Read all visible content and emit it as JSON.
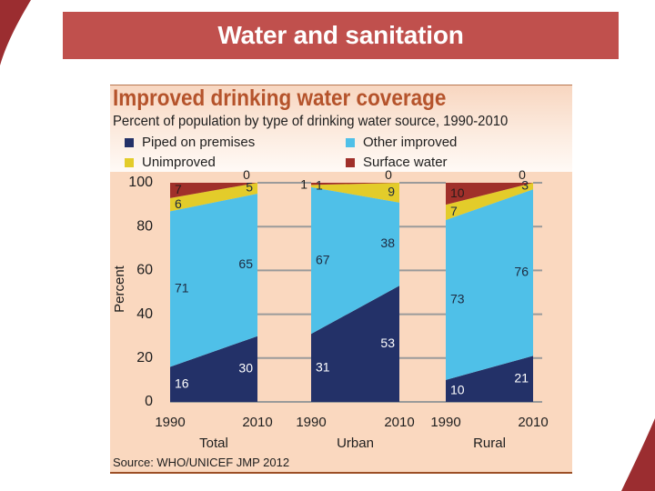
{
  "slide": {
    "title": "Water and sanitation"
  },
  "figure": {
    "title": "Improved drinking water coverage",
    "subtitle": "Percent of population by type of drinking water source, 1990-2010",
    "source": "Source:  WHO/UNICEF JMP 2012"
  },
  "theme": {
    "title_bar_color": "#c0504d",
    "swoosh_color": "#9b2d30",
    "figure_title_color": "#b5532b",
    "chart_background": "#fad8bf"
  },
  "chart_data": {
    "type": "area",
    "stacked": true,
    "title": "Improved drinking water coverage",
    "subtitle": "Percent of population by type of drinking water source, 1990-2010",
    "xlabel": "",
    "ylabel": "Percent",
    "ylim": [
      0,
      100
    ],
    "yticks": [
      0,
      20,
      40,
      60,
      80,
      100
    ],
    "grid": true,
    "legend_position": "top",
    "legend": [
      {
        "label": "Piped on premises",
        "color": "#233168"
      },
      {
        "label": "Other improved",
        "color": "#4fc0e8"
      },
      {
        "label": "Unimproved",
        "color": "#e3cc2a"
      },
      {
        "label": "Surface water",
        "color": "#a0302a"
      }
    ],
    "groups": [
      {
        "name": "Total",
        "x": [
          "1990",
          "2010"
        ],
        "series": [
          {
            "name": "Piped on premises",
            "values": [
              16,
              30
            ]
          },
          {
            "name": "Other improved",
            "values": [
              71,
              65
            ]
          },
          {
            "name": "Unimproved",
            "values": [
              6,
              5
            ]
          },
          {
            "name": "Surface water",
            "values": [
              7,
              0
            ]
          }
        ]
      },
      {
        "name": "Urban",
        "x": [
          "1990",
          "2010"
        ],
        "series": [
          {
            "name": "Piped on premises",
            "values": [
              31,
              53
            ]
          },
          {
            "name": "Other improved",
            "values": [
              67,
              38
            ]
          },
          {
            "name": "Unimproved",
            "values": [
              1,
              9
            ]
          },
          {
            "name": "Surface water",
            "values": [
              1,
              0
            ]
          }
        ]
      },
      {
        "name": "Rural",
        "x": [
          "1990",
          "2010"
        ],
        "series": [
          {
            "name": "Piped on premises",
            "values": [
              10,
              21
            ]
          },
          {
            "name": "Other improved",
            "values": [
              73,
              76
            ]
          },
          {
            "name": "Unimproved",
            "values": [
              7,
              3
            ]
          },
          {
            "name": "Surface water",
            "values": [
              10,
              0
            ]
          }
        ]
      }
    ],
    "source": "Source:  WHO/UNICEF JMP 2012"
  }
}
